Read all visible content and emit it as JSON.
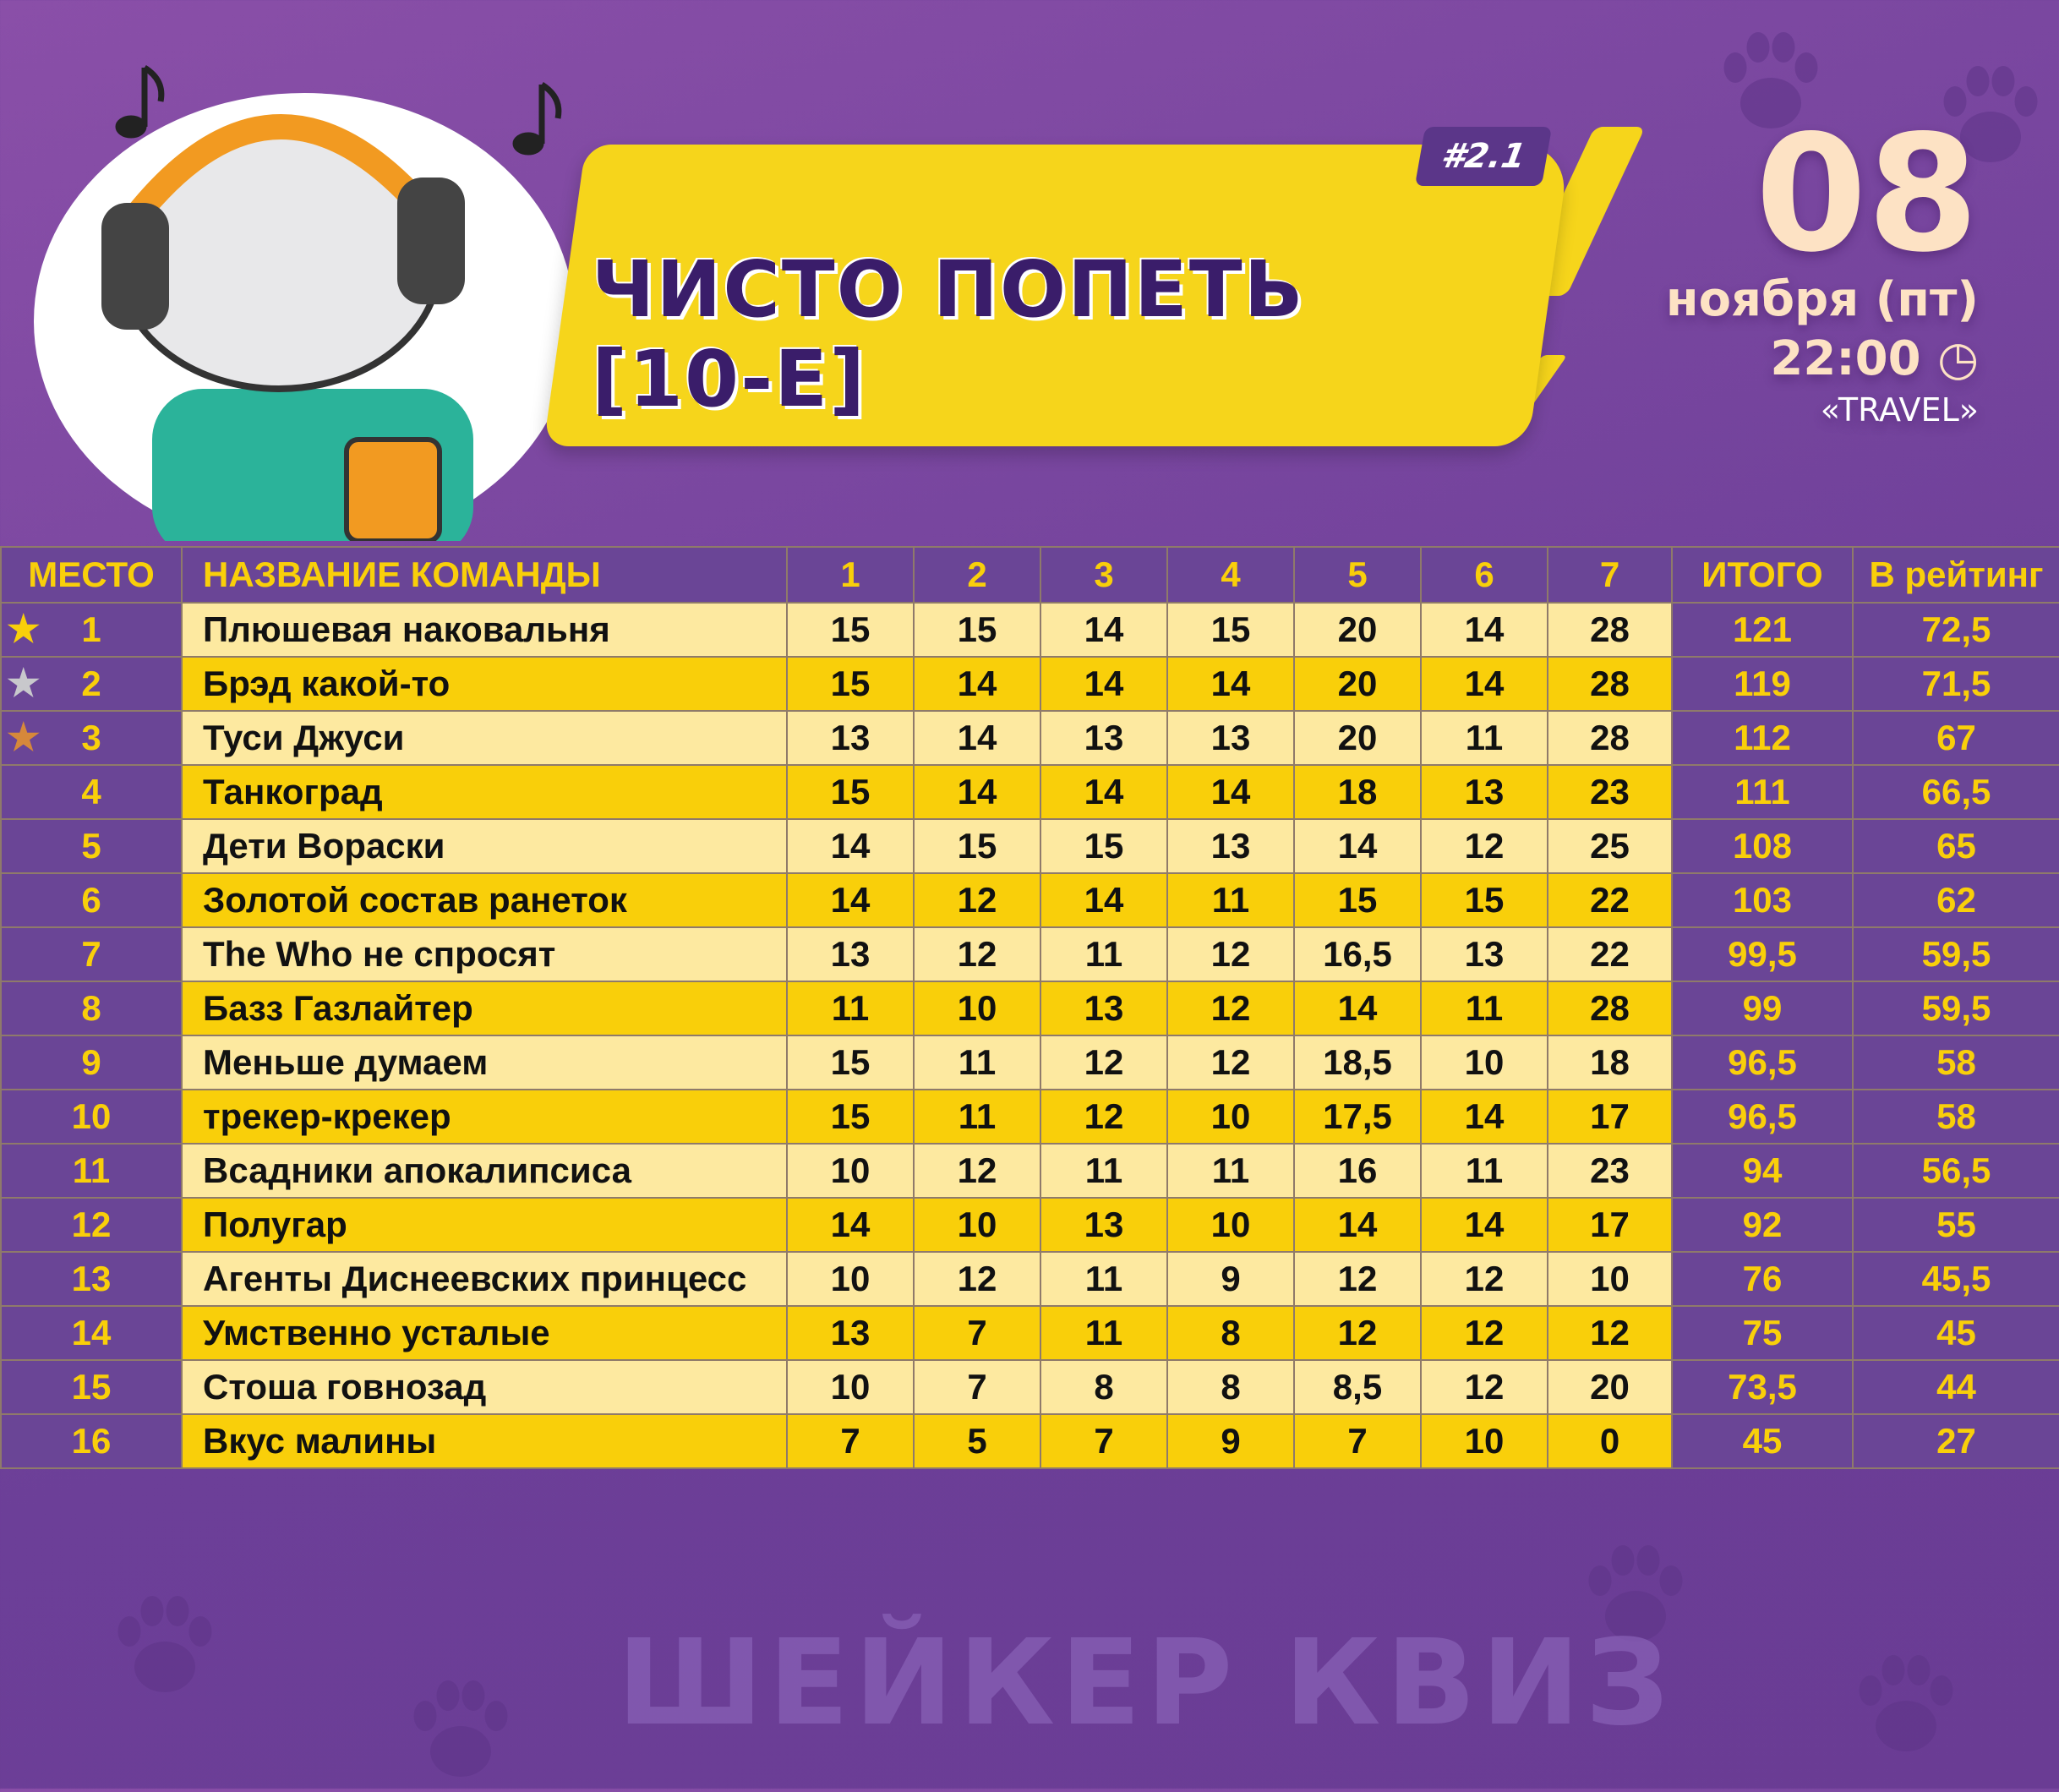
{
  "header": {
    "badge": "#2.1",
    "title": "ЧИСТО ПОПЕТЬ [10-Е]"
  },
  "date": {
    "day": "08",
    "month": "ноября (пт)",
    "time": "22:00",
    "venue": "«TRAVEL»"
  },
  "columns": [
    "МЕСТО",
    "НАЗВАНИЕ КОМАНДЫ",
    "1",
    "2",
    "3",
    "4",
    "5",
    "6",
    "7",
    "ИТОГО",
    "В рейтинг"
  ],
  "colors": {
    "purple": "#6a4596",
    "yellow": "#f9cf0a",
    "light": "#fde9a0",
    "gold": "#f9cf0a",
    "silver": "#c8c8cc",
    "bronze": "#d6883a"
  },
  "rows": [
    {
      "place": "1",
      "name": "Плюшевая наковальня",
      "scores": [
        "15",
        "15",
        "14",
        "15",
        "20",
        "14",
        "28"
      ],
      "total": "121",
      "rating": "72,5",
      "medal": "gold"
    },
    {
      "place": "2",
      "name": "Брэд какой-то",
      "scores": [
        "15",
        "14",
        "14",
        "14",
        "20",
        "14",
        "28"
      ],
      "total": "119",
      "rating": "71,5",
      "medal": "silver"
    },
    {
      "place": "3",
      "name": "Туси Джуси",
      "scores": [
        "13",
        "14",
        "13",
        "13",
        "20",
        "11",
        "28"
      ],
      "total": "112",
      "rating": "67",
      "medal": "bronze"
    },
    {
      "place": "4",
      "name": "Танкоград",
      "scores": [
        "15",
        "14",
        "14",
        "14",
        "18",
        "13",
        "23"
      ],
      "total": "111",
      "rating": "66,5"
    },
    {
      "place": "5",
      "name": "Дети Вораски",
      "scores": [
        "14",
        "15",
        "15",
        "13",
        "14",
        "12",
        "25"
      ],
      "total": "108",
      "rating": "65"
    },
    {
      "place": "6",
      "name": "Золотой состав ранеток",
      "scores": [
        "14",
        "12",
        "14",
        "11",
        "15",
        "15",
        "22"
      ],
      "total": "103",
      "rating": "62"
    },
    {
      "place": "7",
      "name": "The Who не спросят",
      "scores": [
        "13",
        "12",
        "11",
        "12",
        "16,5",
        "13",
        "22"
      ],
      "total": "99,5",
      "rating": "59,5"
    },
    {
      "place": "8",
      "name": "Базз Газлайтер",
      "scores": [
        "11",
        "10",
        "13",
        "12",
        "14",
        "11",
        "28"
      ],
      "total": "99",
      "rating": "59,5"
    },
    {
      "place": "9",
      "name": "Меньше думаем",
      "scores": [
        "15",
        "11",
        "12",
        "12",
        "18,5",
        "10",
        "18"
      ],
      "total": "96,5",
      "rating": "58"
    },
    {
      "place": "10",
      "name": "трекер-крекер",
      "scores": [
        "15",
        "11",
        "12",
        "10",
        "17,5",
        "14",
        "17"
      ],
      "total": "96,5",
      "rating": "58"
    },
    {
      "place": "11",
      "name": "Всадники апокалипсиса",
      "scores": [
        "10",
        "12",
        "11",
        "11",
        "16",
        "11",
        "23"
      ],
      "total": "94",
      "rating": "56,5"
    },
    {
      "place": "12",
      "name": "Полугар",
      "scores": [
        "14",
        "10",
        "13",
        "10",
        "14",
        "14",
        "17"
      ],
      "total": "92",
      "rating": "55"
    },
    {
      "place": "13",
      "name": "Агенты Диснеевских принцесс",
      "scores": [
        "10",
        "12",
        "11",
        "9",
        "12",
        "12",
        "10"
      ],
      "total": "76",
      "rating": "45,5"
    },
    {
      "place": "14",
      "name": "Умственно усталые",
      "scores": [
        "13",
        "7",
        "11",
        "8",
        "12",
        "12",
        "12"
      ],
      "total": "75",
      "rating": "45"
    },
    {
      "place": "15",
      "name": "Стоша говнозад",
      "scores": [
        "10",
        "7",
        "8",
        "8",
        "8,5",
        "12",
        "20"
      ],
      "total": "73,5",
      "rating": "44"
    },
    {
      "place": "16",
      "name": "Вкус малины",
      "scores": [
        "7",
        "5",
        "7",
        "9",
        "7",
        "10",
        "0"
      ],
      "total": "45",
      "rating": "27"
    }
  ],
  "watermark": "ШЕЙКЕР КВИЗ"
}
